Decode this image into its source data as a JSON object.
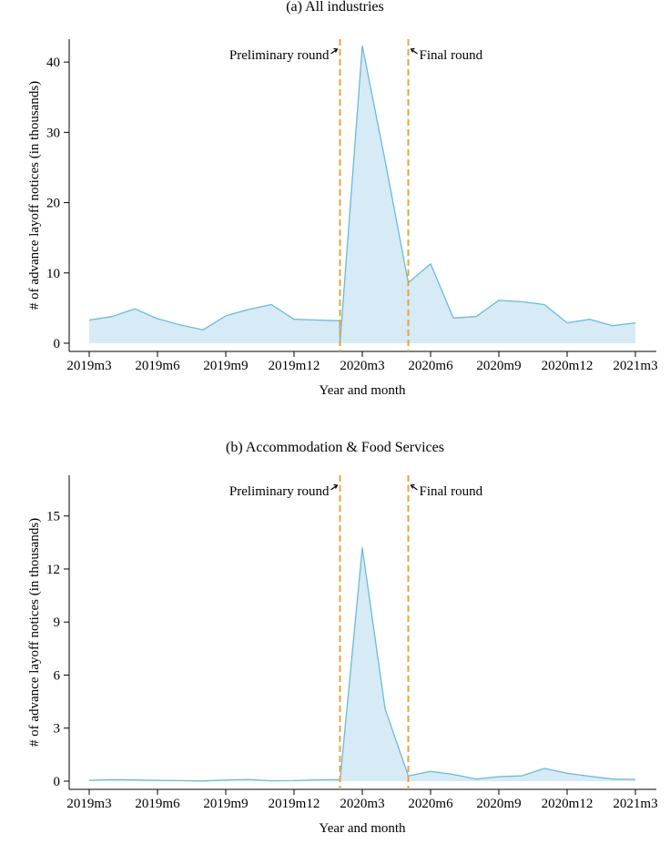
{
  "chart_data": [
    {
      "type": "area",
      "title": "(a) All industries",
      "xlabel": "Year and month",
      "ylabel": "# of advance layoff notices (in thousands)",
      "x_tick_labels": [
        "2019m3",
        "2019m6",
        "2019m9",
        "2019m12",
        "2020m3",
        "2020m6",
        "2020m9",
        "2020m12",
        "2021m3"
      ],
      "y_ticks": [
        0,
        10,
        20,
        30,
        40
      ],
      "ylim": [
        0,
        43
      ],
      "series": [
        {
          "name": "Advance layoff notices",
          "color": "#6bbad8",
          "fill": "#d6ebf5",
          "x": [
            0,
            1,
            2,
            3,
            4,
            5,
            6,
            7,
            8,
            9,
            10,
            11,
            11.02,
            12,
            13,
            14.02,
            15,
            16,
            17,
            18,
            19,
            20,
            21,
            22,
            23,
            24
          ],
          "values": [
            3.3,
            3.8,
            4.9,
            3.5,
            2.6,
            1.9,
            3.9,
            4.8,
            5.5,
            3.4,
            3.3,
            3.2,
            0.0,
            42.3,
            26.0,
            8.6,
            11.3,
            3.6,
            3.8,
            6.1,
            5.9,
            5.5,
            2.9,
            3.4,
            2.5,
            2.9
          ]
        }
      ],
      "vlines": [
        {
          "label": "Preliminary round",
          "x": 11.0,
          "color": "#e8a33d"
        },
        {
          "label": "Final round",
          "x": 14.0,
          "color": "#e8a33d"
        }
      ]
    },
    {
      "type": "area",
      "title": "(b) Accommodation & Food Services",
      "xlabel": "Year and month",
      "ylabel": "# of advance layoff notices (in thousands)",
      "x_tick_labels": [
        "2019m3",
        "2019m6",
        "2019m9",
        "2019m12",
        "2020m3",
        "2020m6",
        "2020m9",
        "2020m12",
        "2021m3"
      ],
      "y_ticks": [
        0,
        3,
        6,
        9,
        12,
        15
      ],
      "ylim": [
        0,
        17.2
      ],
      "series": [
        {
          "name": "Advance layoff notices",
          "color": "#6bbad8",
          "fill": "#d6ebf5",
          "x": [
            0,
            1,
            2,
            3,
            4,
            5,
            6,
            7,
            8,
            9,
            10,
            11,
            11.02,
            12,
            13,
            14.02,
            15,
            16,
            17,
            18,
            19,
            20,
            21,
            22,
            23,
            24
          ],
          "values": [
            0.05,
            0.08,
            0.07,
            0.04,
            0.03,
            0.01,
            0.06,
            0.1,
            0.02,
            0.03,
            0.07,
            0.08,
            0.0,
            13.2,
            4.1,
            0.3,
            0.55,
            0.38,
            0.12,
            0.26,
            0.3,
            0.72,
            0.45,
            0.28,
            0.12,
            0.1
          ]
        }
      ],
      "vlines": [
        {
          "label": "Preliminary round",
          "x": 11.0,
          "color": "#e8a33d"
        },
        {
          "label": "Final round",
          "x": 14.0,
          "color": "#e8a33d"
        }
      ]
    }
  ]
}
